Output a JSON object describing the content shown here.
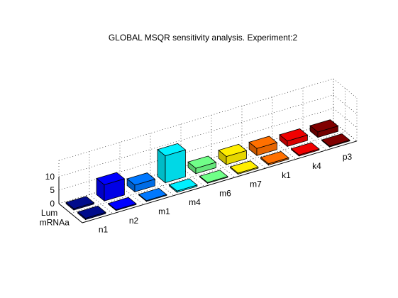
{
  "chart_data": {
    "type": "bar3",
    "title": "GLOBAL MSQR sensitivity analysis. Experiment:2",
    "xlabel": "",
    "ylabel": "",
    "zlabel": "",
    "parameters": [
      "n1",
      "n2",
      "m1",
      "m4",
      "m6",
      "m7",
      "k1",
      "k4",
      "p3"
    ],
    "outputs": [
      "Lum",
      "mRNAa"
    ],
    "zlim": [
      0,
      10
    ],
    "z_ticks": [
      "0",
      "5",
      "10"
    ],
    "grid": true,
    "colormap": "jet",
    "bar_colors": [
      "#000c8c",
      "#0000ff",
      "#0078ff",
      "#00f0ff",
      "#70ff88",
      "#ffee00",
      "#ff7000",
      "#f00000",
      "#800000"
    ],
    "series": [
      {
        "output": "Lum",
        "values": [
          0.5,
          6.0,
          2.5,
          10.0,
          2.0,
          3.0,
          2.6,
          2.0,
          2.0
        ]
      },
      {
        "output": "mRNAa",
        "values": [
          0.5,
          0.3,
          0.3,
          0.5,
          0.3,
          0.4,
          0.5,
          0.4,
          0.3
        ]
      }
    ]
  }
}
